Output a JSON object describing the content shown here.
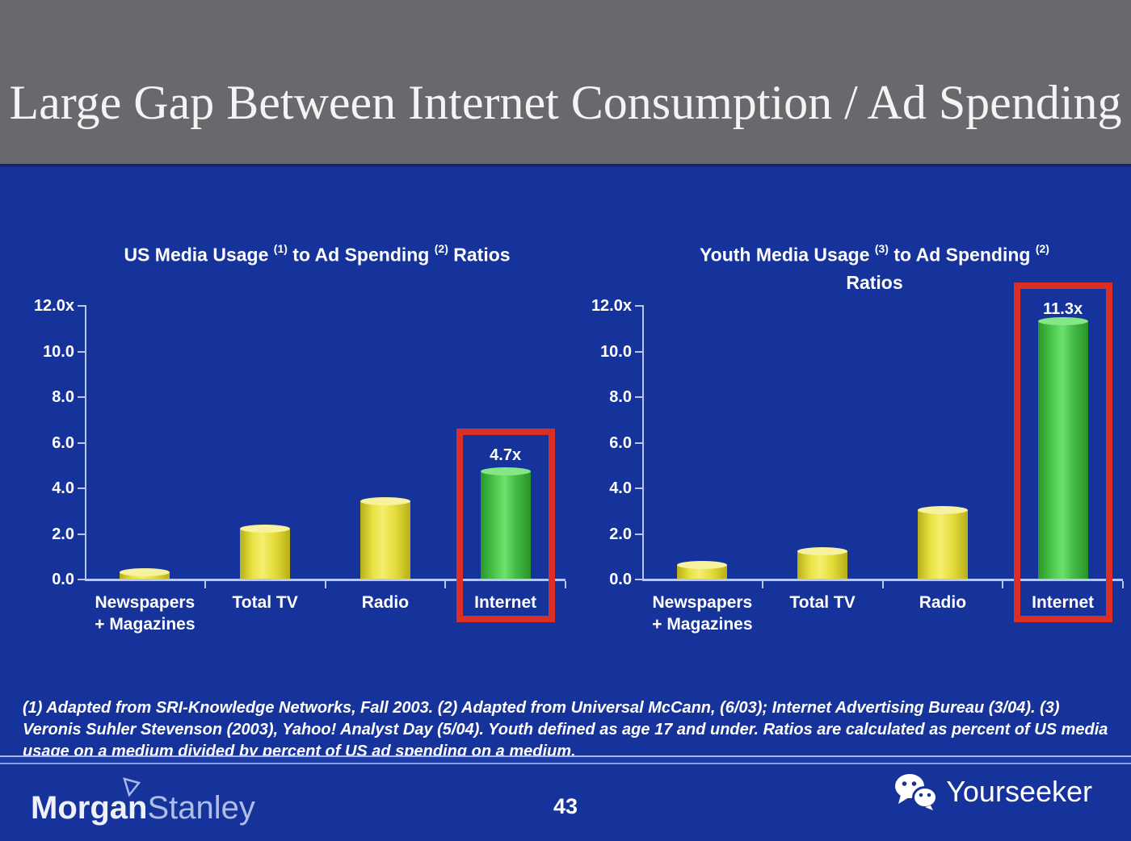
{
  "header": {
    "title": "Large Gap Between Internet Consumption / Ad Spending"
  },
  "footnote": "(1) Adapted from SRI-Knowledge Networks, Fall 2003.  (2) Adapted from Universal McCann, (6/03); Internet Advertising Bureau (3/04). (3) Veronis Suhler Stevenson (2003), Yahoo! Analyst Day (5/04).  Youth defined as age 17 and under.  Ratios are calculated as percent of US media usage on a medium divided by percent of US ad spending on a medium.",
  "footer": {
    "brand_bold": "Morgan",
    "brand_light": "Stanley",
    "page_number": "43",
    "watermark": "Yourseeker"
  },
  "colors": {
    "background": "#16339B",
    "header_gray": "#67696C",
    "axis": "#B9C6EE",
    "bar_yellow": "#E8E243",
    "bar_green": "#4ECB4E",
    "highlight_red": "#DB2E27",
    "text": "#FFFFFF"
  },
  "chart_data": [
    {
      "type": "bar",
      "title": "US Media Usage (1) to Ad Spending (2) Ratios",
      "title_line1_parts": [
        "US Media Usage ",
        "(1)",
        " to Ad Spending ",
        "(2)",
        " Ratios"
      ],
      "title_line2": "",
      "categories": [
        [
          "Newspapers",
          "+ Magazines"
        ],
        [
          "Total TV"
        ],
        [
          "Radio"
        ],
        [
          "Internet"
        ]
      ],
      "values": [
        0.3,
        2.2,
        3.4,
        4.7
      ],
      "bar_colors": [
        "yellow",
        "yellow",
        "yellow",
        "green"
      ],
      "ylim": [
        0,
        12
      ],
      "yticks": [
        {
          "label": "12.0x",
          "value": 12
        },
        {
          "label": "10.0",
          "value": 10
        },
        {
          "label": "8.0",
          "value": 8
        },
        {
          "label": "6.0",
          "value": 6
        },
        {
          "label": "4.0",
          "value": 4
        },
        {
          "label": "2.0",
          "value": 2
        },
        {
          "label": "0.0",
          "value": 0
        }
      ],
      "grid": false,
      "xlabel": "",
      "ylabel": "",
      "highlight": {
        "index": 3,
        "label": "4.7x",
        "top_value": 6.6
      }
    },
    {
      "type": "bar",
      "title": "Youth Media Usage (3) to Ad Spending (2) Ratios",
      "title_line1_parts": [
        "Youth Media Usage ",
        "(3)",
        " to Ad Spending ",
        "(2)",
        ""
      ],
      "title_line2": "Ratios",
      "categories": [
        [
          "Newspapers",
          "+ Magazines"
        ],
        [
          "Total TV"
        ],
        [
          "Radio"
        ],
        [
          "Internet"
        ]
      ],
      "values": [
        0.6,
        1.2,
        3.0,
        11.3
      ],
      "bar_colors": [
        "yellow",
        "yellow",
        "yellow",
        "green"
      ],
      "ylim": [
        0,
        12
      ],
      "yticks": [
        {
          "label": "12.0x",
          "value": 12
        },
        {
          "label": "10.0",
          "value": 10
        },
        {
          "label": "8.0",
          "value": 8
        },
        {
          "label": "6.0",
          "value": 6
        },
        {
          "label": "4.0",
          "value": 4
        },
        {
          "label": "2.0",
          "value": 2
        },
        {
          "label": "0.0",
          "value": 0
        }
      ],
      "grid": false,
      "xlabel": "",
      "ylabel": "",
      "highlight": {
        "index": 3,
        "label": "11.3x",
        "top_value": 13.0
      }
    }
  ]
}
